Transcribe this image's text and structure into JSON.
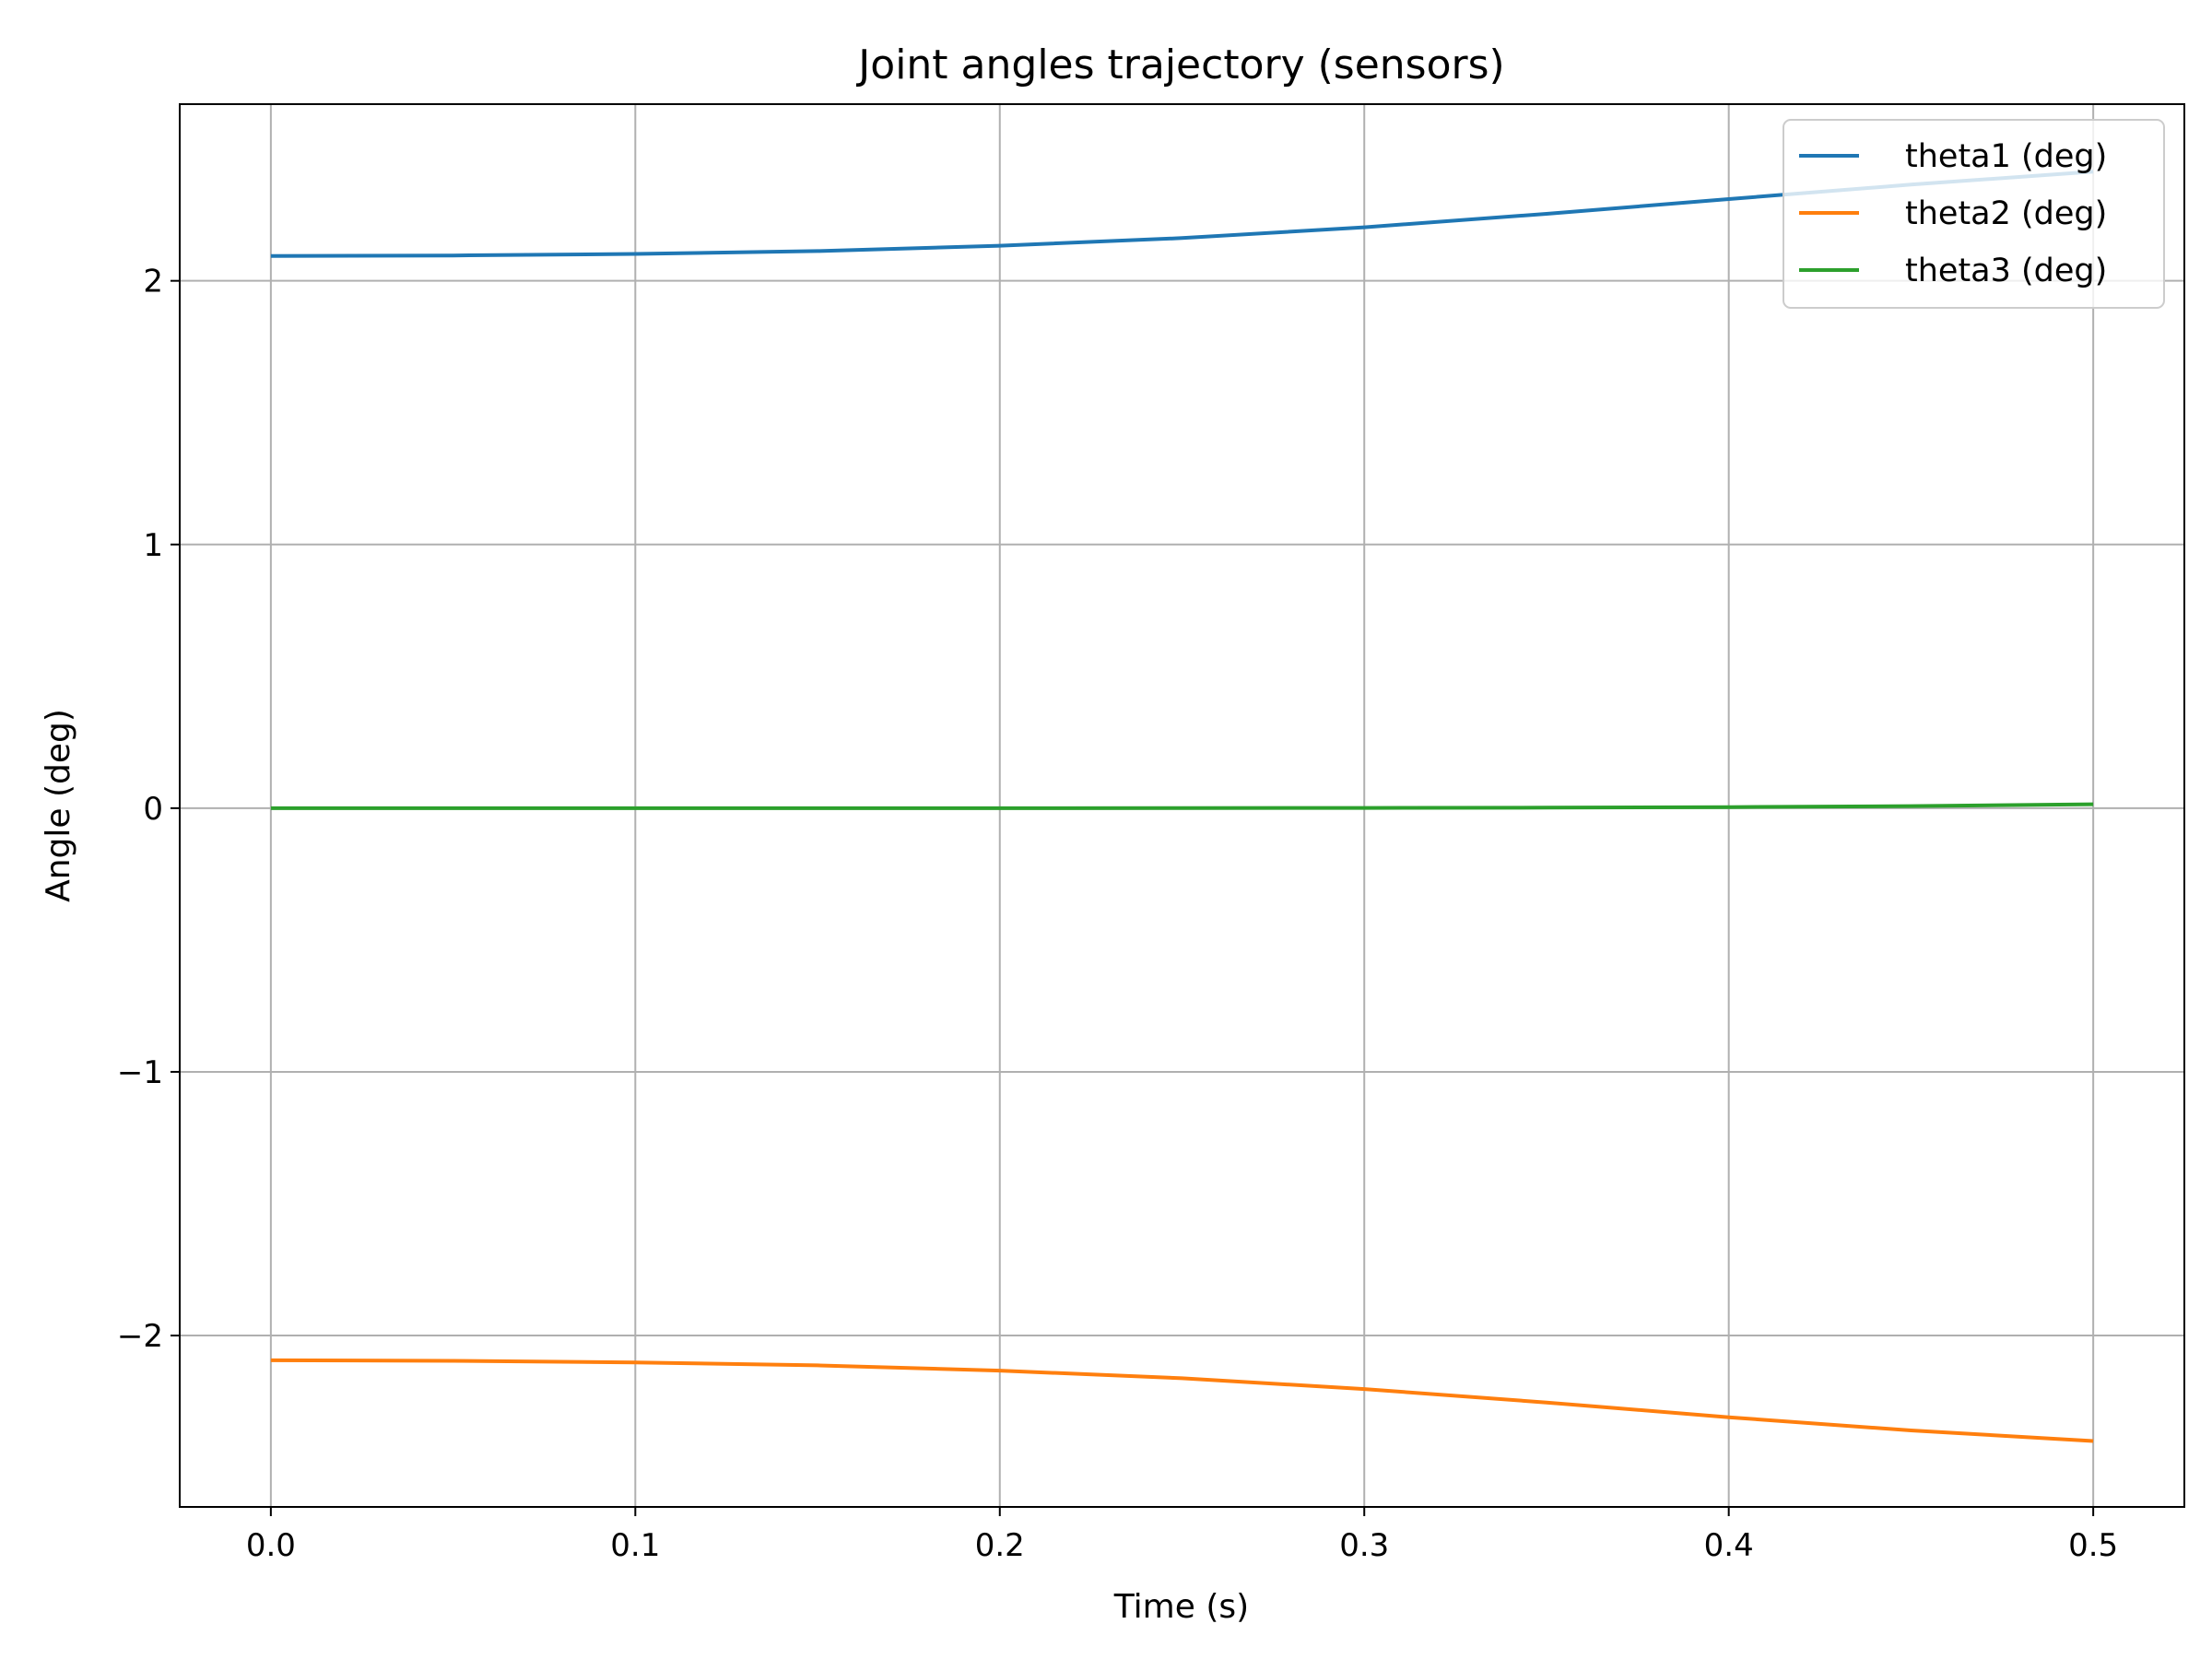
{
  "chart_data": {
    "type": "line",
    "title": "Joint angles trajectory (sensors)",
    "xlabel": "Time (s)",
    "ylabel": "Angle (deg)",
    "xlim": [
      -0.025,
      0.525
    ],
    "ylim": [
      -2.65,
      2.67
    ],
    "xticks": [
      0.0,
      0.1,
      0.2,
      0.3,
      0.4,
      0.5
    ],
    "xtick_labels": [
      "0.0",
      "0.1",
      "0.2",
      "0.3",
      "0.4",
      "0.5"
    ],
    "yticks": [
      -2,
      -1,
      0,
      1,
      2
    ],
    "ytick_labels": [
      "−2",
      "−1",
      "0",
      "1",
      "2"
    ],
    "grid": true,
    "legend_position": "upper right",
    "x": [
      0.0,
      0.05,
      0.1,
      0.15,
      0.2,
      0.25,
      0.3,
      0.35,
      0.4,
      0.45,
      0.5
    ],
    "series": [
      {
        "name": "theta1 (deg)",
        "color": "#1f77b4",
        "values": [
          2.094,
          2.096,
          2.102,
          2.113,
          2.133,
          2.162,
          2.203,
          2.254,
          2.31,
          2.365,
          2.414
        ]
      },
      {
        "name": "theta2 (deg)",
        "color": "#ff7f0e",
        "values": [
          -2.094,
          -2.096,
          -2.102,
          -2.113,
          -2.133,
          -2.162,
          -2.203,
          -2.254,
          -2.31,
          -2.36,
          -2.4
        ]
      },
      {
        "name": "theta3 (deg)",
        "color": "#2ca02c",
        "values": [
          0.0,
          0.0,
          0.0,
          0.0,
          0.0,
          0.0005,
          0.001,
          0.002,
          0.004,
          0.008,
          0.015
        ]
      }
    ]
  }
}
